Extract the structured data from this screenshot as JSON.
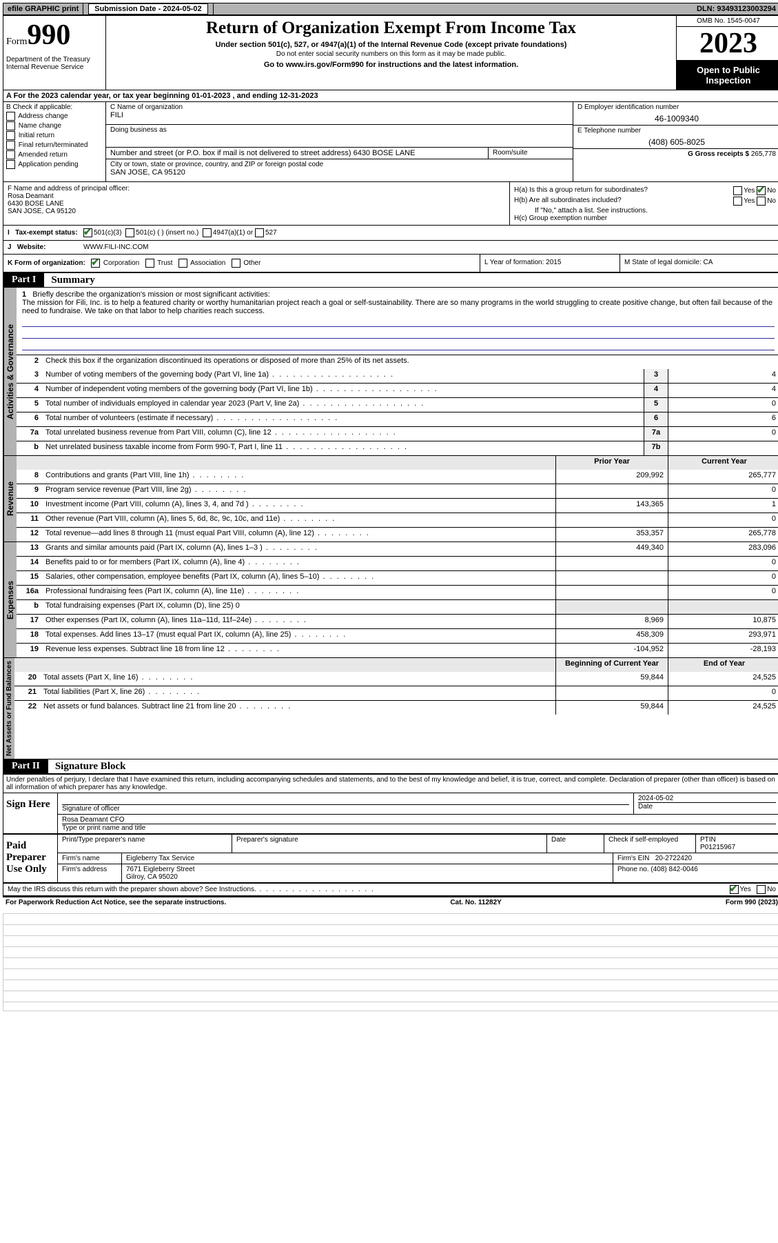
{
  "topbar": {
    "efile": "efile GRAPHIC print",
    "submission_label": "Submission Date - 2024-05-02",
    "dln": "DLN: 93493123003294"
  },
  "header": {
    "form_word": "Form",
    "form_num": "990",
    "dept": "Department of the Treasury Internal Revenue Service",
    "title": "Return of Organization Exempt From Income Tax",
    "sub": "Under section 501(c), 527, or 4947(a)(1) of the Internal Revenue Code (except private foundations)",
    "sub2": "Do not enter social security numbers on this form as it may be made public.",
    "go": "Go to www.irs.gov/Form990 for instructions and the latest information.",
    "omb": "OMB No. 1545-0047",
    "year": "2023",
    "open": "Open to Public Inspection"
  },
  "row_a": "A For the 2023 calendar year, or tax year beginning 01-01-2023   , and ending 12-31-2023",
  "col_b": {
    "hdr": "B Check if applicable:",
    "opts": [
      "Address change",
      "Name change",
      "Initial return",
      "Final return/terminated",
      "Amended return",
      "Application pending"
    ]
  },
  "col_c": {
    "name_lbl": "C Name of organization",
    "name": "FILI",
    "dba_lbl": "Doing business as",
    "addr_lbl": "Number and street (or P.O. box if mail is not delivered to street address)",
    "room_lbl": "Room/suite",
    "addr": "6430 BOSE LANE",
    "city_lbl": "City or town, state or province, country, and ZIP or foreign postal code",
    "city": "SAN JOSE, CA  95120"
  },
  "col_d": {
    "ein_lbl": "D Employer identification number",
    "ein": "46-1009340",
    "tel_lbl": "E Telephone number",
    "tel": "(408) 605-8025",
    "gross_lbl": "G Gross receipts $",
    "gross": "265,778"
  },
  "col_f": {
    "lbl": "F Name and address of principal officer:",
    "name": "Rosa Deamant",
    "addr1": "6430 BOSE LANE",
    "addr2": "SAN JOSE, CA  95120"
  },
  "col_h": {
    "ha": "H(a)  Is this a group return for subordinates?",
    "hb": "H(b)  Are all subordinates included?",
    "hb_note": "If \"No,\" attach a list. See instructions.",
    "hc": "H(c)  Group exemption number",
    "yes": "Yes",
    "no": "No"
  },
  "row_i": {
    "lbl": "Tax-exempt status:",
    "opt1": "501(c)(3)",
    "opt2": "501(c) (  ) (insert no.)",
    "opt3": "4947(a)(1) or",
    "opt4": "527"
  },
  "row_j": {
    "lbl": "Website:",
    "val": "WWW.FILI-INC.COM"
  },
  "row_k": {
    "k1_lbl": "K Form of organization:",
    "k1_opts": [
      "Corporation",
      "Trust",
      "Association",
      "Other"
    ],
    "k2": "L Year of formation: 2015",
    "k3": "M State of legal domicile: CA"
  },
  "part1": {
    "hdr": "Part I",
    "title": "Summary",
    "line1_lbl": "Briefly describe the organization's mission or most significant activities:",
    "line1_txt": "The mission for Fili, Inc. is to help a featured charity or worthy humanitarian project reach a goal or self-sustainability. There are so many programs in the world struggling to create positive change, but often fail because of the need to fundraise. We take on that labor to help charities reach success.",
    "line2": "Check this box       if the organization discontinued its operations or disposed of more than 25% of its net assets.",
    "tab_gov": "Activities & Governance",
    "tab_rev": "Revenue",
    "tab_exp": "Expenses",
    "tab_net": "Net Assets or Fund Balances",
    "prior": "Prior Year",
    "current": "Current Year",
    "begin": "Beginning of Current Year",
    "end": "End of Year"
  },
  "lines_gov": [
    {
      "n": "3",
      "t": "Number of voting members of the governing body (Part VI, line 1a)",
      "b": "3",
      "v": "4"
    },
    {
      "n": "4",
      "t": "Number of independent voting members of the governing body (Part VI, line 1b)",
      "b": "4",
      "v": "4"
    },
    {
      "n": "5",
      "t": "Total number of individuals employed in calendar year 2023 (Part V, line 2a)",
      "b": "5",
      "v": "0"
    },
    {
      "n": "6",
      "t": "Total number of volunteers (estimate if necessary)",
      "b": "6",
      "v": "6"
    },
    {
      "n": "7a",
      "t": "Total unrelated business revenue from Part VIII, column (C), line 12",
      "b": "7a",
      "v": "0"
    },
    {
      "n": "b",
      "t": "Net unrelated business taxable income from Form 990-T, Part I, line 11",
      "b": "7b",
      "v": ""
    }
  ],
  "lines_rev": [
    {
      "n": "8",
      "t": "Contributions and grants (Part VIII, line 1h)",
      "p": "209,992",
      "c": "265,777"
    },
    {
      "n": "9",
      "t": "Program service revenue (Part VIII, line 2g)",
      "p": "",
      "c": "0"
    },
    {
      "n": "10",
      "t": "Investment income (Part VIII, column (A), lines 3, 4, and 7d )",
      "p": "143,365",
      "c": "1"
    },
    {
      "n": "11",
      "t": "Other revenue (Part VIII, column (A), lines 5, 6d, 8c, 9c, 10c, and 11e)",
      "p": "",
      "c": "0"
    },
    {
      "n": "12",
      "t": "Total revenue—add lines 8 through 11 (must equal Part VIII, column (A), line 12)",
      "p": "353,357",
      "c": "265,778"
    }
  ],
  "lines_exp": [
    {
      "n": "13",
      "t": "Grants and similar amounts paid (Part IX, column (A), lines 1–3 )",
      "p": "449,340",
      "c": "283,096"
    },
    {
      "n": "14",
      "t": "Benefits paid to or for members (Part IX, column (A), line 4)",
      "p": "",
      "c": "0"
    },
    {
      "n": "15",
      "t": "Salaries, other compensation, employee benefits (Part IX, column (A), lines 5–10)",
      "p": "",
      "c": "0"
    },
    {
      "n": "16a",
      "t": "Professional fundraising fees (Part IX, column (A), line 11e)",
      "p": "",
      "c": "0"
    },
    {
      "n": "b",
      "t": "Total fundraising expenses (Part IX, column (D), line 25) 0",
      "p": null,
      "c": null
    },
    {
      "n": "17",
      "t": "Other expenses (Part IX, column (A), lines 11a–11d, 11f–24e)",
      "p": "8,969",
      "c": "10,875"
    },
    {
      "n": "18",
      "t": "Total expenses. Add lines 13–17 (must equal Part IX, column (A), line 25)",
      "p": "458,309",
      "c": "293,971"
    },
    {
      "n": "19",
      "t": "Revenue less expenses. Subtract line 18 from line 12",
      "p": "-104,952",
      "c": "-28,193"
    }
  ],
  "lines_net": [
    {
      "n": "20",
      "t": "Total assets (Part X, line 16)",
      "p": "59,844",
      "c": "24,525"
    },
    {
      "n": "21",
      "t": "Total liabilities (Part X, line 26)",
      "p": "",
      "c": "0"
    },
    {
      "n": "22",
      "t": "Net assets or fund balances. Subtract line 21 from line 20",
      "p": "59,844",
      "c": "24,525"
    }
  ],
  "part2": {
    "hdr": "Part II",
    "title": "Signature Block",
    "perjury": "Under penalties of perjury, I declare that I have examined this return, including accompanying schedules and statements, and to the best of my knowledge and belief, it is true, correct, and complete. Declaration of preparer (other than officer) is based on all information of which preparer has any knowledge."
  },
  "sign": {
    "lbl": "Sign Here",
    "sig_lbl": "Signature of officer",
    "name": "Rosa Deamant CFO",
    "name_lbl": "Type or print name and title",
    "date_lbl": "Date",
    "date": "2024-05-02"
  },
  "prep": {
    "lbl": "Paid Preparer Use Only",
    "c1": "Print/Type preparer's name",
    "c2": "Preparer's signature",
    "c3": "Date",
    "c4a": "Check        if self-employed",
    "c4b": "PTIN",
    "ptin": "P01215967",
    "firm_lbl": "Firm's name",
    "firm": "Eigleberry Tax Service",
    "ein_lbl": "Firm's EIN",
    "ein": "20-2722420",
    "addr_lbl": "Firm's address",
    "addr1": "7671 Eigleberry Street",
    "addr2": "Gilroy, CA  95020",
    "phone_lbl": "Phone no.",
    "phone": "(408) 842-0046"
  },
  "discuss": "May the IRS discuss this return with the preparer shown above? See Instructions.",
  "footer": {
    "left": "For Paperwork Reduction Act Notice, see the separate instructions.",
    "mid": "Cat. No. 11282Y",
    "right": "Form 990 (2023)"
  }
}
